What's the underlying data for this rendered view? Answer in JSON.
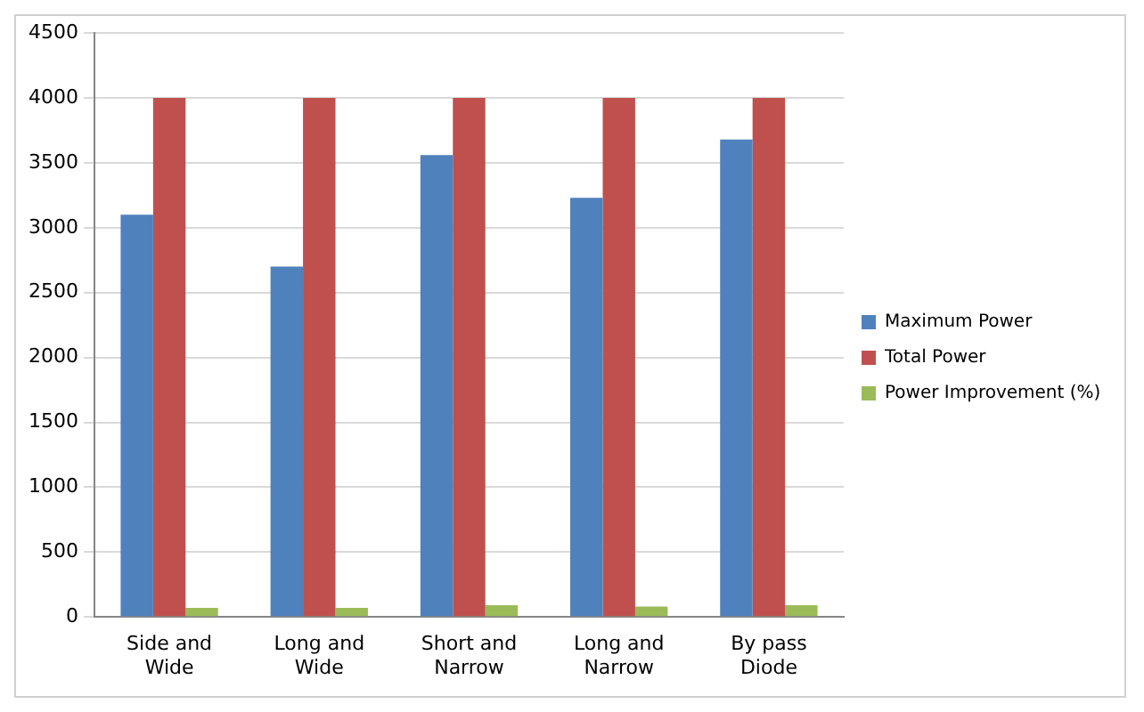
{
  "chart_data": {
    "type": "bar",
    "categories": [
      "Side and Wide",
      "Long and Wide",
      "Short and Narrow",
      "Long and Narrow",
      "By pass Diode"
    ],
    "series": [
      {
        "name": "Maximum Power",
        "color": "#4f81bd",
        "values": [
          3100,
          2700,
          3560,
          3230,
          3680
        ]
      },
      {
        "name": "Total Power",
        "color": "#c0504d",
        "values": [
          4000,
          4000,
          4000,
          4000,
          4000
        ]
      },
      {
        "name": "Power Improvement (%)",
        "color": "#9bbb59",
        "values": [
          70,
          70,
          90,
          80,
          90
        ]
      }
    ],
    "ylim": [
      0,
      4500
    ],
    "yticks": [
      0,
      500,
      1000,
      1500,
      2000,
      2500,
      3000,
      3500,
      4000,
      4500
    ],
    "grid": "y",
    "legend": "right"
  }
}
